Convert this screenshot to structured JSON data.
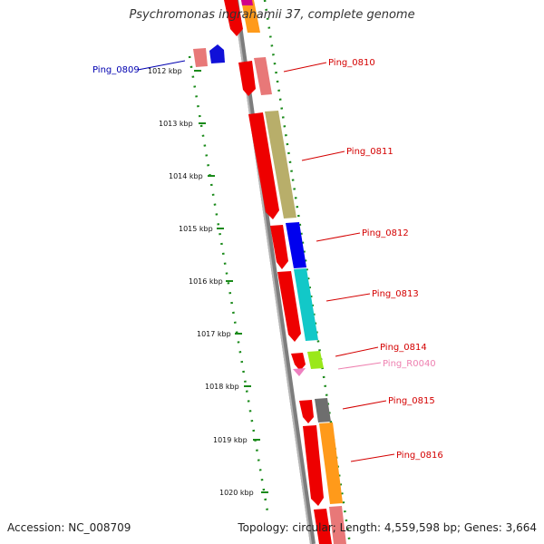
{
  "title": "Psychromonas ingrahamii 37, complete genome",
  "footer": {
    "accession": "Accession: NC_008709",
    "summary": "Topology: circular; Length: 4,559,598 bp; Genes: 3,664"
  },
  "scale": {
    "ticks": [
      {
        "label": "1012 kbp"
      },
      {
        "label": "1013 kbp"
      },
      {
        "label": "1014 kbp"
      },
      {
        "label": "1015 kbp"
      },
      {
        "label": "1016 kbp"
      },
      {
        "label": "1017 kbp"
      },
      {
        "label": "1018 kbp"
      },
      {
        "label": "1019 kbp"
      },
      {
        "label": "1020 kbp"
      }
    ]
  },
  "colors": {
    "backbone": "#7d7d7d",
    "scale_dots": "#1a8a1a",
    "label_red": "#d40000",
    "label_blue": "#0000b0",
    "label_pink": "#ee80b0"
  },
  "genes": [
    {
      "name": "Ping_0809",
      "label_color": "#0000b0"
    },
    {
      "name": "Ping_0810",
      "label_color": "#d40000"
    },
    {
      "name": "Ping_0811",
      "label_color": "#d40000"
    },
    {
      "name": "Ping_0812",
      "label_color": "#d40000"
    },
    {
      "name": "Ping_0813",
      "label_color": "#d40000"
    },
    {
      "name": "Ping_0814",
      "label_color": "#d40000"
    },
    {
      "name": "Ping_R0040",
      "label_color": "#ee80b0"
    },
    {
      "name": "Ping_0815",
      "label_color": "#d40000"
    },
    {
      "name": "Ping_0816",
      "label_color": "#d40000"
    }
  ]
}
